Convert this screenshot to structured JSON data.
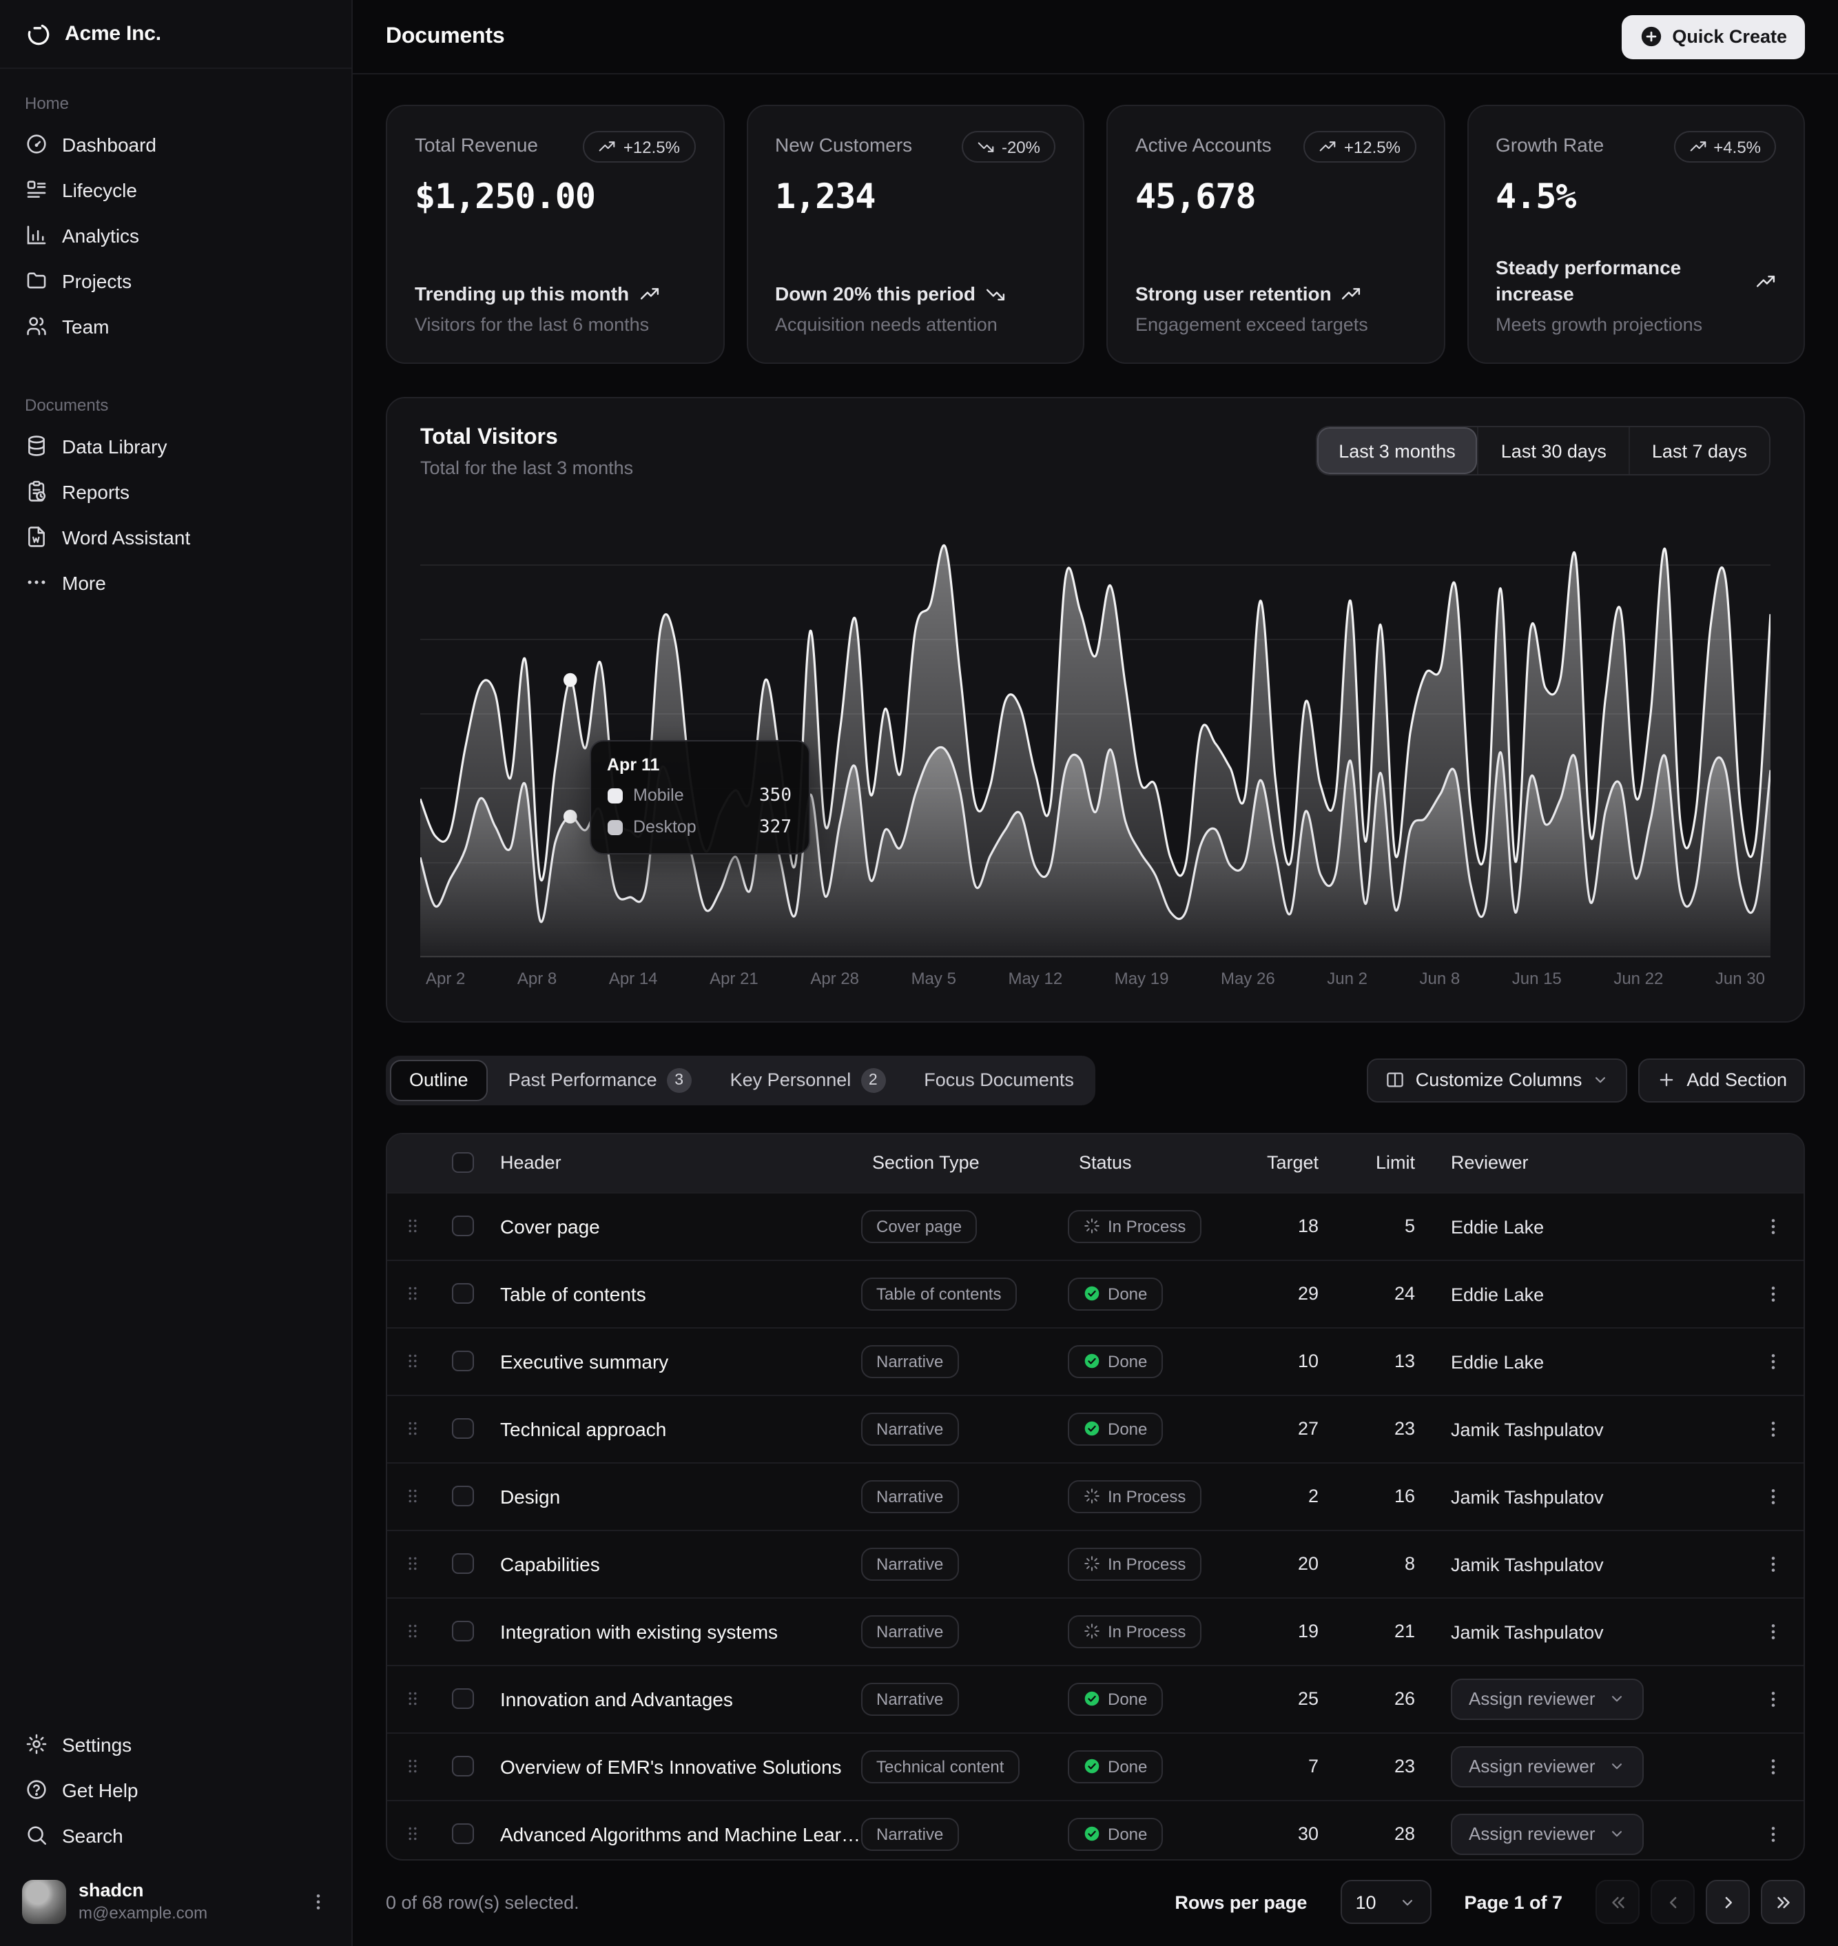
{
  "brand": {
    "name": "Acme Inc."
  },
  "header": {
    "title": "Documents",
    "quick_create_label": "Quick Create"
  },
  "sidebar": {
    "group1_label": "Home",
    "nav_main": [
      {
        "icon": "gauge",
        "label": "Dashboard"
      },
      {
        "icon": "list",
        "label": "Lifecycle"
      },
      {
        "icon": "chart",
        "label": "Analytics"
      },
      {
        "icon": "folder",
        "label": "Projects"
      },
      {
        "icon": "users",
        "label": "Team"
      }
    ],
    "group2_label": "Documents",
    "nav_documents": [
      {
        "icon": "database",
        "label": "Data Library"
      },
      {
        "icon": "clipboard",
        "label": "Reports"
      },
      {
        "icon": "file-word",
        "label": "Word Assistant"
      },
      {
        "icon": "dots",
        "label": "More"
      }
    ],
    "nav_footer": [
      {
        "icon": "gear",
        "label": "Settings"
      },
      {
        "icon": "help",
        "label": "Get Help"
      },
      {
        "icon": "search",
        "label": "Search"
      }
    ],
    "user": {
      "name": "shadcn",
      "email": "m@example.com"
    }
  },
  "cards": [
    {
      "label": "Total Revenue",
      "badge": "+12.5%",
      "trend_icon": "trending-up",
      "value": "$1,250.00",
      "line1": "Trending up this month",
      "line2": "Visitors for the last 6 months"
    },
    {
      "label": "New Customers",
      "badge": "-20%",
      "trend_icon": "trending-down",
      "value": "1,234",
      "line1": "Down 20% this period",
      "line2": "Acquisition needs attention"
    },
    {
      "label": "Active Accounts",
      "badge": "+12.5%",
      "trend_icon": "trending-up",
      "value": "45,678",
      "line1": "Strong user retention",
      "line2": "Engagement exceed targets"
    },
    {
      "label": "Growth Rate",
      "badge": "+4.5%",
      "trend_icon": "trending-up",
      "value": "4.5%",
      "line1": "Steady performance increase",
      "line2": "Meets growth projections"
    }
  ],
  "chart": {
    "title": "Total Visitors",
    "subtitle": "Total for the last 3 months",
    "ranges": [
      {
        "label": "Last 3 months",
        "active": true
      },
      {
        "label": "Last 30 days",
        "active": false
      },
      {
        "label": "Last 7 days",
        "active": false
      }
    ]
  },
  "chart_data": {
    "type": "area",
    "stacked": true,
    "grid": true,
    "legend": "none",
    "title": "Total Visitors",
    "subtitle": "Total for the last 3 months",
    "ylim": [
      0,
      1060
    ],
    "tick_labels": [
      "Apr 2",
      "Apr 8",
      "Apr 14",
      "Apr 21",
      "Apr 28",
      "May 5",
      "May 12",
      "May 19",
      "May 26",
      "Jun 2",
      "Jun 8",
      "Jun 15",
      "Jun 22",
      "Jun 30"
    ],
    "highlight_index": 10,
    "tooltip": {
      "date": "Apr 11",
      "rows": [
        {
          "label": "Mobile",
          "value": "350",
          "color": "#ececf0"
        },
        {
          "label": "Desktop",
          "value": "327",
          "color": "#c7c7cd"
        }
      ]
    },
    "series": [
      {
        "name": "Desktop",
        "color": "#e6e6ea",
        "values": [
          222,
          97,
          167,
          242,
          373,
          301,
          245,
          409,
          59,
          261,
          327,
          292,
          342,
          137,
          120,
          138,
          446,
          364,
          243,
          89,
          137,
          224,
          138,
          387,
          215,
          75,
          383,
          122,
          315,
          454,
          165,
          293,
          247,
          385,
          481,
          498,
          388,
          149,
          227,
          293,
          335,
          197,
          197,
          448,
          473,
          338,
          499,
          315,
          235,
          177,
          82,
          81,
          252,
          294,
          201,
          213,
          420,
          233,
          78,
          340,
          178,
          178,
          470,
          103,
          439,
          88,
          294,
          323,
          385,
          438,
          155,
          92,
          492,
          81,
          426,
          307,
          371,
          475,
          107,
          341,
          408,
          169,
          317,
          480,
          132,
          141,
          434,
          448,
          149,
          103,
          446
        ]
      },
      {
        "name": "Mobile",
        "color": "#ffffff",
        "values": [
          150,
          180,
          120,
          260,
          290,
          340,
          180,
          320,
          110,
          190,
          350,
          210,
          380,
          220,
          170,
          190,
          360,
          410,
          180,
          150,
          200,
          170,
          230,
          290,
          250,
          130,
          420,
          180,
          240,
          380,
          220,
          310,
          190,
          420,
          390,
          520,
          300,
          210,
          180,
          330,
          270,
          240,
          160,
          490,
          380,
          400,
          420,
          350,
          180,
          230,
          140,
          120,
          290,
          220,
          250,
          170,
          460,
          190,
          130,
          280,
          230,
          200,
          410,
          160,
          380,
          140,
          250,
          370,
          320,
          480,
          200,
          150,
          420,
          130,
          380,
          350,
          310,
          520,
          170,
          290,
          450,
          210,
          270,
          530,
          180,
          190,
          380,
          490,
          200,
          160,
          400
        ]
      }
    ]
  },
  "tabs": {
    "items": [
      {
        "label": "Outline",
        "active": true,
        "badge": null
      },
      {
        "label": "Past Performance",
        "active": false,
        "badge": "3"
      },
      {
        "label": "Key Personnel",
        "active": false,
        "badge": "2"
      },
      {
        "label": "Focus Documents",
        "active": false,
        "badge": null
      }
    ],
    "customize_label": "Customize Columns",
    "add_label": "Add Section"
  },
  "table": {
    "columns": [
      "Header",
      "Section Type",
      "Status",
      "Target",
      "Limit",
      "Reviewer"
    ],
    "assign_label": "Assign reviewer",
    "rows": [
      {
        "header": "Cover page",
        "type": "Cover page",
        "status": "In Process",
        "done": false,
        "target": "18",
        "limit": "5",
        "reviewer": "Eddie Lake"
      },
      {
        "header": "Table of contents",
        "type": "Table of contents",
        "status": "Done",
        "done": true,
        "target": "29",
        "limit": "24",
        "reviewer": "Eddie Lake"
      },
      {
        "header": "Executive summary",
        "type": "Narrative",
        "status": "Done",
        "done": true,
        "target": "10",
        "limit": "13",
        "reviewer": "Eddie Lake"
      },
      {
        "header": "Technical approach",
        "type": "Narrative",
        "status": "Done",
        "done": true,
        "target": "27",
        "limit": "23",
        "reviewer": "Jamik Tashpulatov"
      },
      {
        "header": "Design",
        "type": "Narrative",
        "status": "In Process",
        "done": false,
        "target": "2",
        "limit": "16",
        "reviewer": "Jamik Tashpulatov"
      },
      {
        "header": "Capabilities",
        "type": "Narrative",
        "status": "In Process",
        "done": false,
        "target": "20",
        "limit": "8",
        "reviewer": "Jamik Tashpulatov"
      },
      {
        "header": "Integration with existing systems",
        "type": "Narrative",
        "status": "In Process",
        "done": false,
        "target": "19",
        "limit": "21",
        "reviewer": "Jamik Tashpulatov"
      },
      {
        "header": "Innovation and Advantages",
        "type": "Narrative",
        "status": "Done",
        "done": true,
        "target": "25",
        "limit": "26",
        "reviewer": null
      },
      {
        "header": "Overview of EMR's Innovative Solutions",
        "type": "Technical content",
        "status": "Done",
        "done": true,
        "target": "7",
        "limit": "23",
        "reviewer": null
      },
      {
        "header": "Advanced Algorithms and Machine Learning",
        "type": "Narrative",
        "status": "Done",
        "done": true,
        "target": "30",
        "limit": "28",
        "reviewer": null
      }
    ]
  },
  "footer": {
    "selected_text": "0 of 68 row(s) selected.",
    "rows_per_page_label": "Rows per page",
    "rows_per_page_value": "10",
    "page_text": "Page 1 of 7"
  }
}
